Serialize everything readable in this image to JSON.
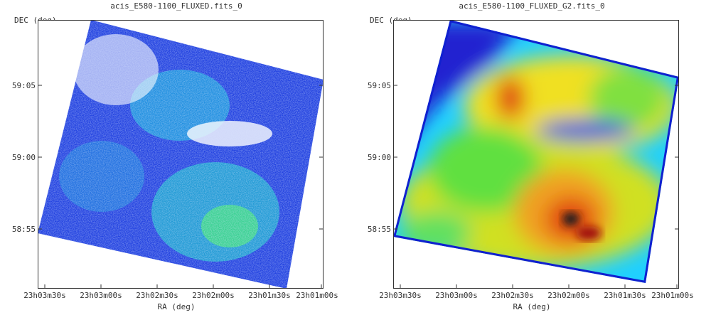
{
  "panels": [
    {
      "title": "acis_E580-1100_FLUXED.fits_0",
      "ylabel": "DEC (deg)",
      "xlabel": "RA (deg)",
      "yticks": [
        "59:05",
        "59:00",
        "58:55"
      ],
      "xticks": [
        "23h03m30s",
        "23h03m00s",
        "23h02m30s",
        "23h02m00s",
        "23h01m30s",
        "23h01m00s"
      ],
      "style": "pixel-noise"
    },
    {
      "title": "acis_E580-1100_FLUXED_G2.fits_0",
      "ylabel": "DEC (deg)",
      "xlabel": "RA (deg)",
      "yticks": [
        "59:05",
        "59:00",
        "58:55"
      ],
      "xticks": [
        "23h03m30s",
        "23h03m00s",
        "23h02m30s",
        "23h02m00s",
        "23h01m30s",
        "23h01m00s"
      ],
      "style": "smoothed"
    }
  ],
  "colors": {
    "low": "#1010d0",
    "mid": "#20d0ff",
    "green": "#30e030",
    "yellow": "#f0f020",
    "high": "#e02010",
    "peak": "#202020"
  }
}
